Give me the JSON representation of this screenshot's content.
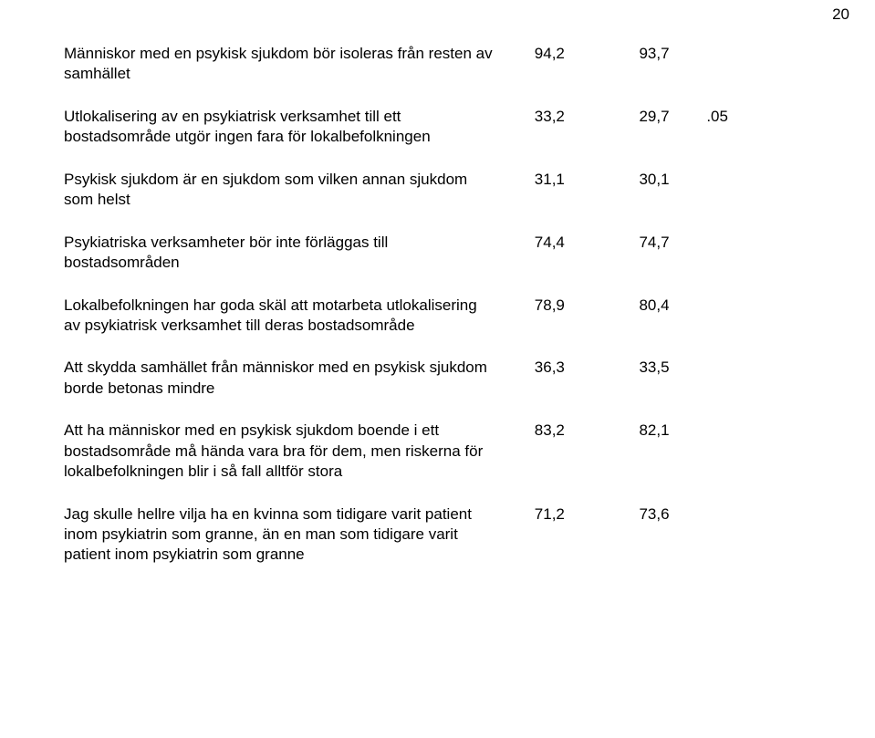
{
  "page_number": "20",
  "rows": [
    {
      "statement": "Människor med en psykisk sjukdom bör isoleras från resten av samhället",
      "col1": "94,2",
      "col2": "93,7",
      "sig": ""
    },
    {
      "statement": "Utlokalisering av en psykiatrisk verksamhet till ett bostadsområde utgör ingen fara för lokalbefolkningen",
      "col1": "33,2",
      "col2": "29,7",
      "sig": ".05"
    },
    {
      "statement": "Psykisk sjukdom är en sjukdom som vilken annan sjukdom som helst",
      "col1": "31,1",
      "col2": "30,1",
      "sig": ""
    },
    {
      "statement": "Psykiatriska verksamheter bör inte förläggas till bostadsområden",
      "col1": "74,4",
      "col2": "74,7",
      "sig": ""
    },
    {
      "statement": "Lokalbefolkningen har goda skäl att motarbeta utlokalisering av psykiatrisk verksamhet till deras bostadsområde",
      "col1": "78,9",
      "col2": "80,4",
      "sig": ""
    },
    {
      "statement": "Att skydda samhället från människor med en psykisk sjukdom borde betonas mindre",
      "col1": "36,3",
      "col2": "33,5",
      "sig": ""
    },
    {
      "statement": "Att ha människor med en psykisk sjukdom boende i ett bostadsområde må hända vara bra för dem, men riskerna för lokalbefolkningen blir i så fall alltför stora",
      "col1": "83,2",
      "col2": "82,1",
      "sig": ""
    },
    {
      "statement": "Jag skulle hellre vilja ha en kvinna som tidigare varit patient inom psykiatrin som granne, än en man som tidigare varit patient inom psykiatrin som granne",
      "col1": "71,2",
      "col2": "73,6",
      "sig": ""
    }
  ]
}
